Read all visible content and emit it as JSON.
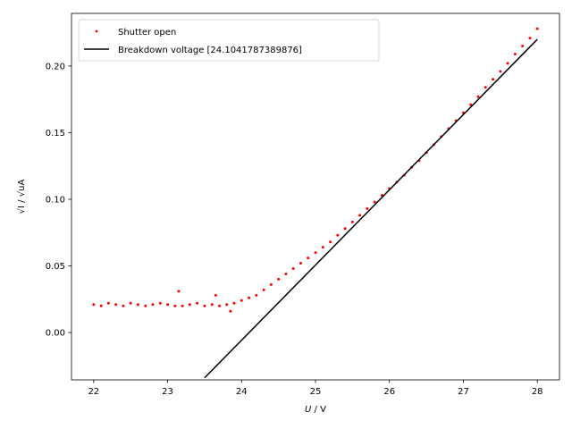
{
  "chart_data": {
    "type": "scatter",
    "title": "",
    "xlabel_var": "U",
    "xlabel_unit": " / V",
    "ylabel": "√I / √uA",
    "xlim": [
      21.7,
      28.3
    ],
    "ylim": [
      -0.0355,
      0.2395
    ],
    "xticks": [
      22,
      23,
      24,
      25,
      26,
      27,
      28
    ],
    "yticks": [
      0.0,
      0.05,
      0.1,
      0.15,
      0.2
    ],
    "ytick_labels": [
      "0.00",
      "0.05",
      "0.10",
      "0.15",
      "0.20"
    ],
    "grid": false,
    "legend_position": "top-left",
    "colors": {
      "scatter": "#ff0000",
      "fit": "#000000"
    },
    "series": [
      {
        "name": "Shutter open",
        "kind": "scatter",
        "x": [
          22.0,
          22.1,
          22.2,
          22.3,
          22.4,
          22.5,
          22.6,
          22.7,
          22.8,
          22.9,
          23.0,
          23.1,
          23.15,
          23.2,
          23.3,
          23.4,
          23.5,
          23.6,
          23.65,
          23.7,
          23.8,
          23.85,
          23.9,
          24.0,
          24.1,
          24.2,
          24.3,
          24.4,
          24.5,
          24.6,
          24.7,
          24.8,
          24.9,
          25.0,
          25.1,
          25.2,
          25.3,
          25.4,
          25.5,
          25.6,
          25.7,
          25.8,
          25.9,
          26.0,
          26.1,
          26.2,
          26.3,
          26.4,
          26.5,
          26.6,
          26.7,
          26.8,
          26.9,
          27.0,
          27.1,
          27.2,
          27.3,
          27.4,
          27.5,
          27.6,
          27.7,
          27.8,
          27.9,
          28.0
        ],
        "y": [
          0.021,
          0.02,
          0.022,
          0.021,
          0.02,
          0.022,
          0.021,
          0.02,
          0.021,
          0.022,
          0.021,
          0.02,
          0.031,
          0.02,
          0.021,
          0.022,
          0.02,
          0.021,
          0.028,
          0.02,
          0.021,
          0.016,
          0.022,
          0.024,
          0.026,
          0.028,
          0.032,
          0.036,
          0.04,
          0.044,
          0.048,
          0.052,
          0.056,
          0.06,
          0.064,
          0.068,
          0.073,
          0.078,
          0.083,
          0.088,
          0.093,
          0.098,
          0.103,
          0.108,
          0.113,
          0.118,
          0.124,
          0.129,
          0.135,
          0.141,
          0.147,
          0.153,
          0.159,
          0.165,
          0.171,
          0.177,
          0.184,
          0.19,
          0.196,
          0.202,
          0.209,
          0.215,
          0.221,
          0.228
        ]
      },
      {
        "name": "Breakdown voltage [24.1041787389876]",
        "kind": "line",
        "x": [
          23.5,
          28.0
        ],
        "y": [
          -0.034,
          0.22
        ]
      }
    ]
  }
}
